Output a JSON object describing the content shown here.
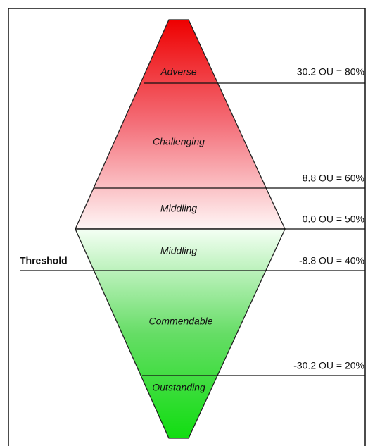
{
  "zones": [
    "Adverse",
    "Challenging",
    "Middling",
    "Middling",
    "Commendable",
    "Outstanding"
  ],
  "levels": [
    "30.2 OU = 80%",
    "8.8 OU = 60%",
    "0.0 OU = 50%",
    "-8.8 OU = 40%",
    "-30.2 OU = 20%"
  ],
  "threshold": "Threshold"
}
